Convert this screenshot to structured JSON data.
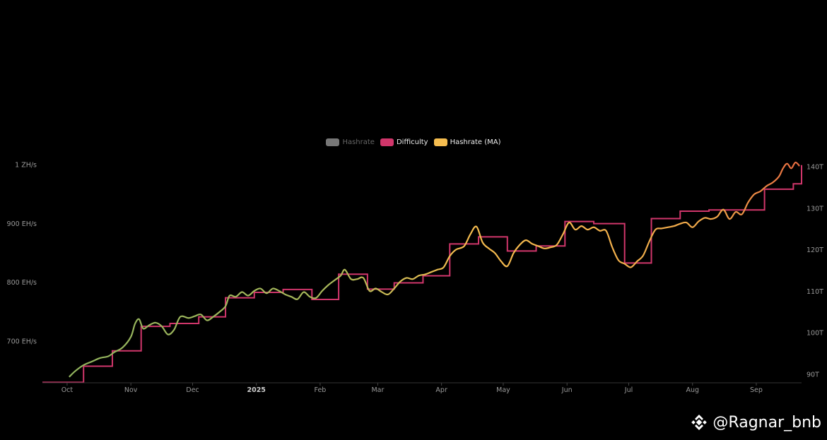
{
  "legend": [
    {
      "name": "Hashrate",
      "color": "#777777",
      "active": false
    },
    {
      "name": "Difficulty",
      "color": "#d1366b",
      "active": true
    },
    {
      "name": "Hashrate (MA)",
      "color": "#f5bd4f",
      "active": true
    }
  ],
  "watermark": {
    "text": "@Ragnar_bnb",
    "icon": "binance-logo-icon"
  },
  "chart_data": {
    "type": "line",
    "x_axis": {
      "range": [
        "2024-09-19",
        "2025-09-23"
      ],
      "ticks": [
        {
          "date": "2024-10-01",
          "label": "Oct",
          "bold": false
        },
        {
          "date": "2024-11-01",
          "label": "Nov",
          "bold": false
        },
        {
          "date": "2024-12-01",
          "label": "Dec",
          "bold": false
        },
        {
          "date": "2025-01-01",
          "label": "2025",
          "bold": true
        },
        {
          "date": "2025-02-01",
          "label": "Feb",
          "bold": false
        },
        {
          "date": "2025-03-01",
          "label": "Mar",
          "bold": false
        },
        {
          "date": "2025-04-01",
          "label": "Apr",
          "bold": false
        },
        {
          "date": "2025-05-01",
          "label": "May",
          "bold": false
        },
        {
          "date": "2025-06-01",
          "label": "Jun",
          "bold": false
        },
        {
          "date": "2025-07-01",
          "label": "Jul",
          "bold": false
        },
        {
          "date": "2025-08-01",
          "label": "Aug",
          "bold": false
        },
        {
          "date": "2025-09-01",
          "label": "Sep",
          "bold": false
        }
      ]
    },
    "y_left": {
      "unit": "EH/s",
      "range": [
        630,
        1010
      ],
      "ticks": [
        {
          "value": 700,
          "label": "700 EH/s"
        },
        {
          "value": 800,
          "label": "800 EH/s"
        },
        {
          "value": 900,
          "label": "900 EH/s"
        },
        {
          "value": 1000,
          "label": "1 ZH/s"
        }
      ]
    },
    "y_right": {
      "unit": "T",
      "range": [
        88,
        142
      ],
      "ticks": [
        {
          "value": 90,
          "label": "90T"
        },
        {
          "value": 100,
          "label": "100T"
        },
        {
          "value": 110,
          "label": "110T"
        },
        {
          "value": 120,
          "label": "120T"
        },
        {
          "value": 130,
          "label": "130T"
        },
        {
          "value": 140,
          "label": "140T"
        }
      ]
    },
    "series": [
      {
        "name": "Difficulty",
        "axis": "right",
        "shape": "step",
        "color": "#d1366b",
        "points": [
          [
            "2024-09-19",
            88.1
          ],
          [
            "2024-10-09",
            92.0
          ],
          [
            "2024-10-23",
            95.7
          ],
          [
            "2024-11-06",
            101.6
          ],
          [
            "2024-11-20",
            102.3
          ],
          [
            "2024-12-04",
            103.9
          ],
          [
            "2024-12-17",
            108.5
          ],
          [
            "2024-12-31",
            109.8
          ],
          [
            "2025-01-14",
            110.5
          ],
          [
            "2025-01-28",
            108.1
          ],
          [
            "2025-02-10",
            114.2
          ],
          [
            "2025-02-24",
            110.6
          ],
          [
            "2025-03-09",
            112.1
          ],
          [
            "2025-03-23",
            113.8
          ],
          [
            "2025-04-05",
            121.5
          ],
          [
            "2025-04-19",
            123.2
          ],
          [
            "2025-05-03",
            119.8
          ],
          [
            "2025-05-17",
            121.0
          ],
          [
            "2025-05-31",
            126.9
          ],
          [
            "2025-06-14",
            126.4
          ],
          [
            "2025-06-29",
            116.9
          ],
          [
            "2025-07-12",
            127.6
          ],
          [
            "2025-07-26",
            129.4
          ],
          [
            "2025-08-09",
            129.7
          ],
          [
            "2025-08-22",
            129.7
          ],
          [
            "2025-09-05",
            134.7
          ],
          [
            "2025-09-19",
            136.0
          ],
          [
            "2025-09-23",
            140.5
          ]
        ]
      },
      {
        "name": "Hashrate (MA)",
        "axis": "left",
        "shape": "smooth",
        "color_gradient": [
          "#8fb35e",
          "#f5bd4f",
          "#e86a40"
        ],
        "points": [
          [
            "2024-10-02",
            640
          ],
          [
            "2024-10-05",
            650
          ],
          [
            "2024-10-09",
            660
          ],
          [
            "2024-10-13",
            666
          ],
          [
            "2024-10-17",
            672
          ],
          [
            "2024-10-21",
            675
          ],
          [
            "2024-10-24",
            682
          ],
          [
            "2024-10-28",
            690
          ],
          [
            "2024-11-01",
            708
          ],
          [
            "2024-11-03",
            730
          ],
          [
            "2024-11-05",
            738
          ],
          [
            "2024-11-07",
            722
          ],
          [
            "2024-11-10",
            728
          ],
          [
            "2024-11-13",
            732
          ],
          [
            "2024-11-16",
            726
          ],
          [
            "2024-11-19",
            712
          ],
          [
            "2024-11-22",
            720
          ],
          [
            "2024-11-25",
            742
          ],
          [
            "2024-11-29",
            740
          ],
          [
            "2024-12-02",
            743
          ],
          [
            "2024-12-05",
            746
          ],
          [
            "2024-12-08",
            736
          ],
          [
            "2024-12-11",
            742
          ],
          [
            "2024-12-14",
            750
          ],
          [
            "2024-12-17",
            760
          ],
          [
            "2024-12-19",
            778
          ],
          [
            "2024-12-22",
            776
          ],
          [
            "2024-12-25",
            784
          ],
          [
            "2024-12-28",
            778
          ],
          [
            "2024-12-31",
            786
          ],
          [
            "2025-01-03",
            790
          ],
          [
            "2025-01-06",
            782
          ],
          [
            "2025-01-09",
            790
          ],
          [
            "2025-01-12",
            786
          ],
          [
            "2025-01-15",
            780
          ],
          [
            "2025-01-18",
            776
          ],
          [
            "2025-01-21",
            772
          ],
          [
            "2025-01-24",
            784
          ],
          [
            "2025-01-27",
            776
          ],
          [
            "2025-01-30",
            774
          ],
          [
            "2025-02-02",
            786
          ],
          [
            "2025-02-05",
            796
          ],
          [
            "2025-02-08",
            804
          ],
          [
            "2025-02-11",
            812
          ],
          [
            "2025-02-13",
            822
          ],
          [
            "2025-02-16",
            806
          ],
          [
            "2025-02-19",
            806
          ],
          [
            "2025-02-22",
            808
          ],
          [
            "2025-02-25",
            786
          ],
          [
            "2025-02-28",
            790
          ],
          [
            "2025-03-03",
            784
          ],
          [
            "2025-03-06",
            780
          ],
          [
            "2025-03-09",
            790
          ],
          [
            "2025-03-12",
            802
          ],
          [
            "2025-03-15",
            808
          ],
          [
            "2025-03-18",
            806
          ],
          [
            "2025-03-21",
            812
          ],
          [
            "2025-03-24",
            814
          ],
          [
            "2025-03-27",
            818
          ],
          [
            "2025-03-30",
            822
          ],
          [
            "2025-04-02",
            826
          ],
          [
            "2025-04-05",
            845
          ],
          [
            "2025-04-08",
            856
          ],
          [
            "2025-04-12",
            862
          ],
          [
            "2025-04-15",
            882
          ],
          [
            "2025-04-18",
            895
          ],
          [
            "2025-04-21",
            868
          ],
          [
            "2025-04-24",
            858
          ],
          [
            "2025-04-27",
            850
          ],
          [
            "2025-04-30",
            836
          ],
          [
            "2025-05-03",
            828
          ],
          [
            "2025-05-06",
            850
          ],
          [
            "2025-05-09",
            864
          ],
          [
            "2025-05-12",
            872
          ],
          [
            "2025-05-15",
            866
          ],
          [
            "2025-05-18",
            862
          ],
          [
            "2025-05-21",
            858
          ],
          [
            "2025-05-24",
            860
          ],
          [
            "2025-05-27",
            864
          ],
          [
            "2025-05-30",
            882
          ],
          [
            "2025-06-02",
            902
          ],
          [
            "2025-06-05",
            890
          ],
          [
            "2025-06-08",
            896
          ],
          [
            "2025-06-11",
            890
          ],
          [
            "2025-06-14",
            894
          ],
          [
            "2025-06-17",
            888
          ],
          [
            "2025-06-20",
            888
          ],
          [
            "2025-06-23",
            860
          ],
          [
            "2025-06-26",
            838
          ],
          [
            "2025-06-29",
            832
          ],
          [
            "2025-07-02",
            826
          ],
          [
            "2025-07-05",
            836
          ],
          [
            "2025-07-08",
            846
          ],
          [
            "2025-07-11",
            870
          ],
          [
            "2025-07-14",
            890
          ],
          [
            "2025-07-17",
            892
          ],
          [
            "2025-07-20",
            894
          ],
          [
            "2025-07-23",
            896
          ],
          [
            "2025-07-26",
            900
          ],
          [
            "2025-07-29",
            902
          ],
          [
            "2025-08-01",
            894
          ],
          [
            "2025-08-04",
            904
          ],
          [
            "2025-08-07",
            910
          ],
          [
            "2025-08-10",
            908
          ],
          [
            "2025-08-13",
            912
          ],
          [
            "2025-08-16",
            924
          ],
          [
            "2025-08-19",
            908
          ],
          [
            "2025-08-22",
            920
          ],
          [
            "2025-08-25",
            916
          ],
          [
            "2025-08-28",
            936
          ],
          [
            "2025-08-31",
            950
          ],
          [
            "2025-09-03",
            955
          ],
          [
            "2025-09-06",
            964
          ],
          [
            "2025-09-09",
            970
          ],
          [
            "2025-09-12",
            980
          ],
          [
            "2025-09-14",
            994
          ],
          [
            "2025-09-16",
            1002
          ],
          [
            "2025-09-18",
            994
          ],
          [
            "2025-09-20",
            1004
          ],
          [
            "2025-09-22",
            998
          ]
        ]
      }
    ],
    "grid": false,
    "legend_position": "top-center"
  }
}
